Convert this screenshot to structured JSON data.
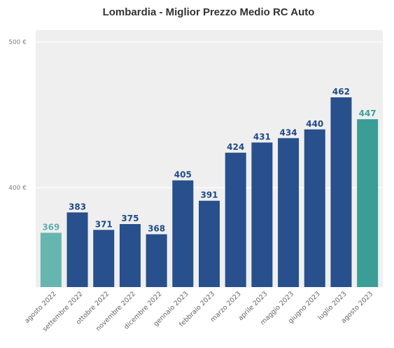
{
  "chart_data": {
    "type": "bar",
    "title": "Lombardia - Miglior Prezzo Medio RC Auto",
    "xlabel": "",
    "ylabel": "",
    "yticks": [
      {
        "value": 400,
        "label": "400 €"
      },
      {
        "value": 500,
        "label": "500 €"
      }
    ],
    "grid": true,
    "legend": "none",
    "categories": [
      "agosto 2022",
      "settembre 2022",
      "ottobre 2022",
      "novembre 2022",
      "dicembre 2022",
      "gennaio 2023",
      "febbraio 2023",
      "marzo 2023",
      "aprile 2023",
      "maggio 2023",
      "giugno 2023",
      "luglio 2023",
      "agosto 2023"
    ],
    "values": [
      369,
      383,
      371,
      375,
      368,
      405,
      391,
      424,
      431,
      434,
      440,
      462,
      447
    ],
    "data_labels": [
      "369",
      "383",
      "371",
      "375",
      "368",
      "405",
      "391",
      "424",
      "431",
      "434",
      "440",
      "462",
      "447"
    ],
    "bar_colors": [
      "#66b5af",
      "#27508c",
      "#27508c",
      "#27508c",
      "#27508c",
      "#27508c",
      "#27508c",
      "#27508c",
      "#27508c",
      "#27508c",
      "#27508c",
      "#27508c",
      "#3a9d96"
    ],
    "label_colors": [
      "#5fb0aa",
      "#1f4a87",
      "#1f4a87",
      "#1f4a87",
      "#1f4a87",
      "#1f4a87",
      "#1f4a87",
      "#1f4a87",
      "#1f4a87",
      "#1f4a87",
      "#1f4a87",
      "#1f4a87",
      "#3aa39c"
    ],
    "colors": {
      "background": "#ffffff",
      "plot_background": "#efefef",
      "grid": "#ffffff"
    }
  }
}
